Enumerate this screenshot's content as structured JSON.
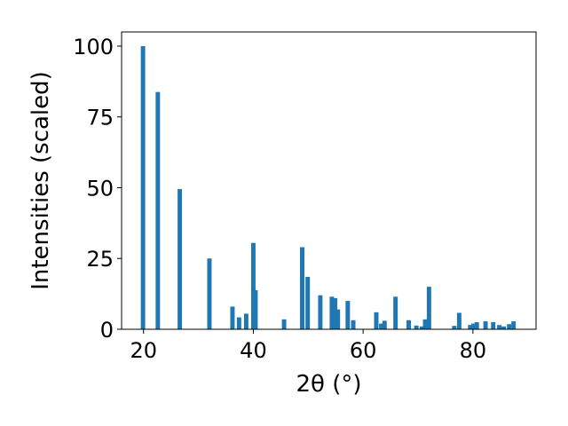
{
  "chart_data": {
    "type": "bar",
    "xlabel": "2θ (°)",
    "ylabel": "Intensities (scaled)",
    "xlim": [
      16,
      91.5
    ],
    "ylim": [
      0,
      105
    ],
    "xticks": [
      20,
      40,
      60,
      80
    ],
    "yticks": [
      0,
      25,
      50,
      75,
      100
    ],
    "bar_width": 0.8,
    "bar_color": "#1f77b4",
    "grid": false,
    "x": [
      19.9,
      22.6,
      26.6,
      32.0,
      36.2,
      37.4,
      38.7,
      40.0,
      40.4,
      45.6,
      48.9,
      49.9,
      52.2,
      54.3,
      54.9,
      55.4,
      57.2,
      58.2,
      62.4,
      63.3,
      63.9,
      65.9,
      68.3,
      69.7,
      70.7,
      71.3,
      72.0,
      76.6,
      77.5,
      79.5,
      80.1,
      80.7,
      82.3,
      83.7,
      84.8,
      85.6,
      86.6,
      87.4
    ],
    "values": [
      100,
      83.8,
      49.5,
      25.0,
      8.0,
      4.2,
      5.5,
      30.5,
      13.8,
      3.5,
      29.0,
      18.5,
      12.0,
      11.5,
      11.0,
      7.0,
      10.0,
      3.2,
      6.0,
      2.0,
      3.0,
      11.5,
      3.2,
      1.3,
      1.0,
      3.5,
      15.0,
      1.2,
      5.8,
      1.5,
      2.0,
      2.5,
      2.8,
      2.5,
      1.5,
      1.0,
      1.8,
      2.8
    ]
  }
}
